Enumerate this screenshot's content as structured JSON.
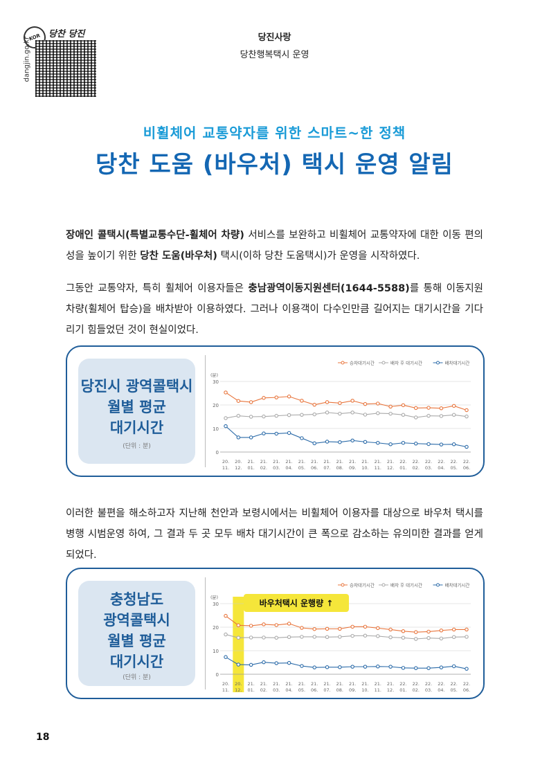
{
  "header": {
    "section": "당진사랑",
    "subsection": "당찬행복택시 운영",
    "url": "dangjin.go.kr",
    "logo_badge": "KOR",
    "logo_script": "당찬 당진"
  },
  "kicker": "비휠체어 교통약자를 위한 스마트~한 정책",
  "title": "당찬 도움 (바우처) 택시 운영 알림",
  "paragraphs": {
    "p1": {
      "bold1": "장애인 콜택시(특별교통수단-휠체어 차량)",
      "t1": " 서비스를 보완하고 비휠체어 교통약자에 대한 이동 편의성을 높이기 위한 ",
      "bold2": "당찬 도움(바우처)",
      "t2": " 택시(이하 당찬 도움택시)가 운영을 시작하였다."
    },
    "p2": {
      "t1": "그동안 교통약자, 특히 휠체어 이용자들은 ",
      "bold1": "충남광역이동지원센터(1644-5588)",
      "t2": "를 통해 이동지원 차량(휠체어 탑승)을 배차받아 이용하였다. 그러나 이용객이 다수인만큼 길어지는 대기시간을 기다리기 힘들었던 것이 현실이었다."
    },
    "p3": {
      "t1": "이러한 불편을 해소하고자 지난해 천안과 보령시에서는 비휠체어 이용자를 대상으로 바우처 택시를 병행 시범운영 하여, 그 결과 두 곳 모두 배차 대기시간이 큰 폭으로 감소하는 유의미한 결과를 얻게 되었다."
    }
  },
  "cards": [
    {
      "label_lines": [
        "당진시 광역콜택시",
        "월별 평균",
        "대기시간"
      ],
      "unit": "(단위 : 분)"
    },
    {
      "label_lines": [
        "충청남도",
        "광역콜택시",
        "월별 평균",
        "대기시간"
      ],
      "unit": "(단위 : 분)",
      "callout": "바우처택시 운행량 ↑"
    }
  ],
  "page_number": "18",
  "colors": {
    "orange": "#e8743b",
    "gray": "#a9a9a9",
    "blue": "#2a6aa8",
    "highlight": "#f5e63a"
  },
  "chart_data": [
    {
      "type": "line",
      "ylabel": "(분)",
      "ylim": [
        0,
        30
      ],
      "yticks": [
        0,
        10,
        20,
        30
      ],
      "grid": true,
      "legend_position": "top-right",
      "categories": [
        "20.11.",
        "20.12.",
        "21.01.",
        "21.02.",
        "21.03.",
        "21.04.",
        "21.05.",
        "21.06.",
        "21.07.",
        "21.08.",
        "21.09.",
        "21.10.",
        "21.11.",
        "21.12.",
        "22.01.",
        "22.02.",
        "22.03.",
        "22.04.",
        "22.05.",
        "22.06."
      ],
      "series": [
        {
          "name": "승차대기시간",
          "color": "#e8743b",
          "values": [
            25.3,
            21.7,
            21.2,
            23.0,
            23.2,
            23.6,
            21.8,
            20.1,
            21.2,
            20.8,
            21.8,
            20.4,
            20.6,
            19.3,
            19.9,
            18.7,
            18.8,
            18.6,
            19.6,
            17.8
          ]
        },
        {
          "name": "배차 후 대기시간",
          "color": "#a9a9a9",
          "values": [
            14.4,
            15.4,
            15.0,
            15.1,
            15.4,
            15.7,
            15.8,
            16.0,
            16.8,
            16.3,
            16.8,
            15.9,
            16.5,
            16.3,
            15.8,
            14.7,
            15.4,
            15.3,
            15.8,
            15.1
          ]
        },
        {
          "name": "배차대기시간",
          "color": "#2a6aa8",
          "values": [
            11.0,
            6.2,
            6.2,
            7.9,
            7.8,
            8.1,
            5.9,
            3.7,
            4.4,
            4.2,
            4.9,
            4.3,
            3.9,
            3.3,
            3.9,
            3.6,
            3.4,
            3.2,
            3.3,
            2.2
          ]
        }
      ]
    },
    {
      "type": "line",
      "ylabel": "(분)",
      "ylim": [
        0,
        30
      ],
      "yticks": [
        0,
        10,
        20,
        30
      ],
      "grid": true,
      "legend_position": "top-right",
      "highlight_category": "20.12.",
      "categories": [
        "20.11.",
        "20.12.",
        "21.01.",
        "21.02.",
        "21.03.",
        "21.04.",
        "21.05.",
        "21.06.",
        "21.07.",
        "21.08.",
        "21.09.",
        "21.10.",
        "21.11.",
        "21.12.",
        "22.01.",
        "22.02.",
        "22.03.",
        "22.04.",
        "22.05.",
        "22.06."
      ],
      "series": [
        {
          "name": "승차대기시간",
          "color": "#e8743b",
          "values": [
            24.8,
            20.8,
            20.6,
            21.2,
            20.9,
            21.5,
            19.7,
            19.2,
            19.3,
            19.3,
            20.2,
            20.2,
            19.6,
            19.0,
            18.3,
            17.9,
            18.1,
            18.6,
            19.0,
            19.0
          ]
        },
        {
          "name": "배차 후 대기시간",
          "color": "#a9a9a9",
          "values": [
            16.9,
            15.5,
            15.6,
            15.6,
            15.5,
            15.8,
            15.9,
            15.9,
            15.8,
            15.9,
            16.3,
            16.4,
            16.2,
            15.7,
            15.5,
            15.0,
            15.4,
            15.2,
            15.8,
            15.9
          ]
        },
        {
          "name": "배차대기시간",
          "color": "#2a6aa8",
          "values": [
            7.3,
            4.1,
            4.0,
            5.1,
            4.7,
            4.8,
            3.5,
            2.9,
            3.0,
            3.0,
            3.2,
            3.2,
            3.3,
            3.2,
            2.7,
            2.6,
            2.6,
            2.9,
            3.4,
            2.3
          ]
        }
      ]
    }
  ]
}
